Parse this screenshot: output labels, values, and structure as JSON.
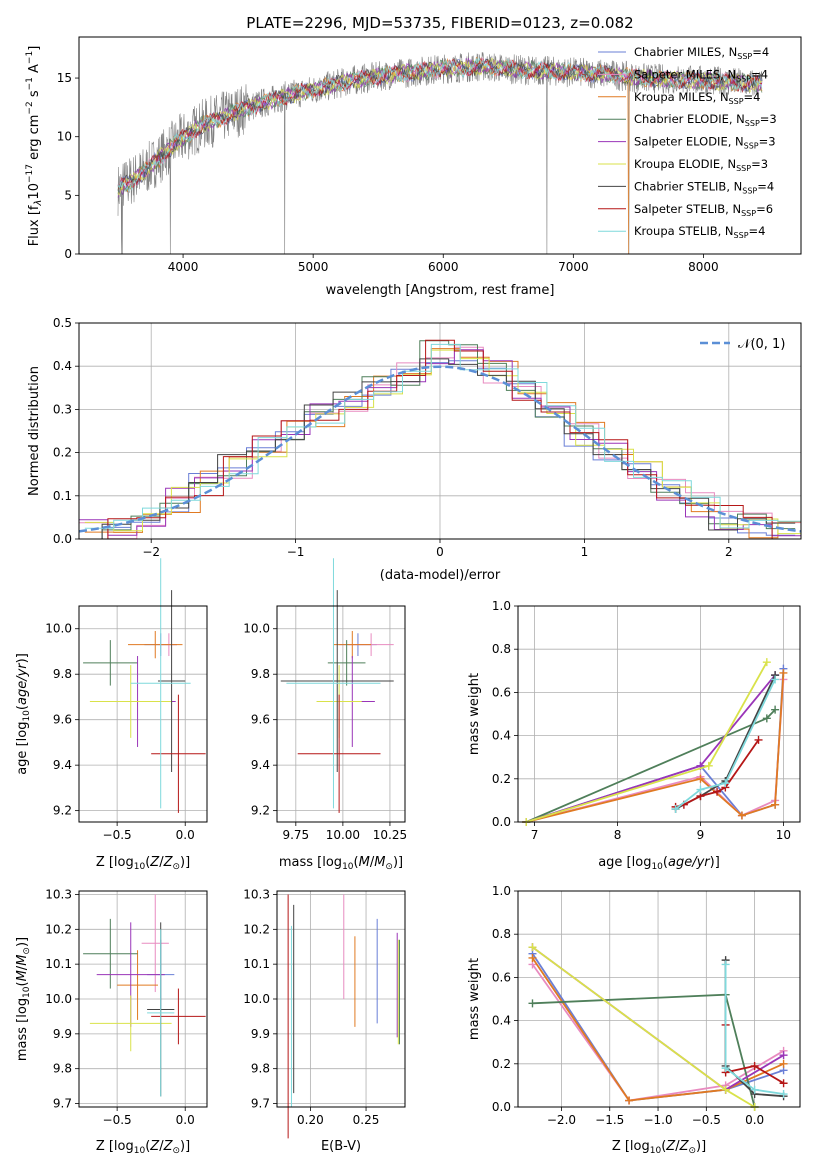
{
  "title": "PLATE=2296, MJD=53735, FIBERID=0123, z=0.082",
  "colors": {
    "Chabrier MILES": "#6a7fd6",
    "Salpeter MILES": "#e88bc0",
    "Kroupa MILES": "#e07a22",
    "Chabrier ELODIE": "#4f7f5a",
    "Salpeter ELODIE": "#9a35b8",
    "Kroupa ELODIE": "#d9e24a",
    "Chabrier STELIB": "#444444",
    "Salpeter STELIB": "#b51717",
    "Kroupa STELIB": "#7fd9dc",
    "data": "#808080",
    "normal": "#5b8fd6"
  },
  "panels": {
    "spectrum": {
      "xlabel": "wavelength [Angstrom, rest frame]",
      "ylabel": "Flux [f_λ10^-17 erg cm^-2 s^-1 A^-1]",
      "xticks": [
        "4000",
        "5000",
        "6000",
        "7000",
        "8000"
      ],
      "yticks": [
        "0",
        "5",
        "10",
        "15"
      ]
    },
    "residuals": {
      "xlabel": "(data-model)/error",
      "ylabel": "Normed distribution",
      "xticks": [
        "−2",
        "−1",
        "0",
        "1",
        "2"
      ],
      "yticks": [
        "0.0",
        "0.1",
        "0.2",
        "0.3",
        "0.4",
        "0.5"
      ],
      "legend_label": "𝒩(0, 1)"
    },
    "age_vs_Z": {
      "xlabel": "Z [log10(Z/Z⊙)]",
      "ylabel": "age [log10(age/yr)]",
      "xticks": [
        "−0.5",
        "0.0"
      ],
      "yticks": [
        "9.2",
        "9.4",
        "9.6",
        "9.8",
        "10.0"
      ]
    },
    "age_vs_mass": {
      "xlabel": "mass [log10(M/M⊙)]",
      "xticks": [
        "9.75",
        "10.00",
        "10.25"
      ],
      "yticks": [
        "9.2",
        "9.4",
        "9.6",
        "9.8",
        "10.0"
      ]
    },
    "mw_vs_age": {
      "xlabel": "age [log10(age/yr)]",
      "ylabel": "mass weight",
      "xticks": [
        "7",
        "8",
        "9",
        "10"
      ],
      "yticks": [
        "0.0",
        "0.2",
        "0.4",
        "0.6",
        "0.8",
        "1.0"
      ]
    },
    "mass_vs_Z": {
      "xlabel": "Z [log10(Z/Z⊙)]",
      "ylabel": "mass [log10(M/M⊙)]",
      "xticks": [
        "−0.5",
        "0.0"
      ],
      "yticks": [
        "9.7",
        "9.8",
        "9.9",
        "10.0",
        "10.1",
        "10.2",
        "10.3"
      ]
    },
    "mass_vs_ebv": {
      "xlabel": "E(B-V)",
      "xticks": [
        "0.20",
        "0.25"
      ],
      "yticks": [
        "9.7",
        "9.8",
        "9.9",
        "10.0",
        "10.1",
        "10.2",
        "10.3"
      ]
    },
    "mw_vs_Z": {
      "xlabel": "Z [log10(Z/Z⊙)]",
      "ylabel": "mass weight",
      "xticks": [
        "−2.0",
        "−1.5",
        "−1.0",
        "−0.5",
        "0.0"
      ],
      "yticks": [
        "0.0",
        "0.2",
        "0.4",
        "0.6",
        "0.8",
        "1.0"
      ]
    }
  },
  "chart_data": [
    {
      "type": "line",
      "title": "PLATE=2296, MJD=53735, FIBERID=0123, z=0.082",
      "xlabel": "wavelength [Angstrom, rest frame]",
      "ylabel": "Flux [f_λ10^-17 erg cm^-2 s^-1 A^-1]",
      "xlim": [
        3200,
        8750
      ],
      "ylim": [
        0,
        18.5
      ],
      "legend_position": "right",
      "series": [
        {
          "name": "Chabrier MILES, N_SSP=4"
        },
        {
          "name": "Salpeter MILES, N_SSP=4"
        },
        {
          "name": "Kroupa MILES, N_SSP=4"
        },
        {
          "name": "Chabrier ELODIE, N_SSP=3"
        },
        {
          "name": "Salpeter ELODIE, N_SSP=3"
        },
        {
          "name": "Kroupa ELODIE, N_SSP=3"
        },
        {
          "name": "Chabrier STELIB, N_SSP=4"
        },
        {
          "name": "Salpeter STELIB, N_SSP=6"
        },
        {
          "name": "Kroupa STELIB, N_SSP=4"
        }
      ],
      "continuum": {
        "x": [
          3500,
          3700,
          3950,
          4150,
          4500,
          4800,
          5000,
          5300,
          5600,
          6000,
          6300,
          6600,
          7000,
          7300,
          7500,
          8000,
          8400
        ],
        "y": [
          5.5,
          7.0,
          9.5,
          11.0,
          12.5,
          13.5,
          14.0,
          14.8,
          15.3,
          15.8,
          16.0,
          15.7,
          15.5,
          15.3,
          15.0,
          14.8,
          14.5
        ]
      }
    },
    {
      "type": "bar",
      "xlabel": "(data-model)/error",
      "ylabel": "Normed distribution",
      "xlim": [
        -2.5,
        2.5
      ],
      "ylim": [
        0,
        0.5
      ],
      "bin_edges": [
        -2.5,
        -2.3,
        -2.1,
        -1.9,
        -1.7,
        -1.5,
        -1.3,
        -1.1,
        -0.9,
        -0.7,
        -0.5,
        -0.3,
        -0.1,
        0.1,
        0.3,
        0.5,
        0.7,
        0.9,
        1.1,
        1.3,
        1.5,
        1.7,
        1.9,
        2.1,
        2.3,
        2.5
      ],
      "values": [
        0.02,
        0.03,
        0.05,
        0.09,
        0.13,
        0.17,
        0.21,
        0.25,
        0.29,
        0.32,
        0.35,
        0.38,
        0.43,
        0.42,
        0.39,
        0.34,
        0.29,
        0.24,
        0.2,
        0.16,
        0.12,
        0.08,
        0.05,
        0.03,
        0.02
      ],
      "reference": {
        "name": "𝒩(0, 1)",
        "mean": 0,
        "std": 1
      }
    },
    {
      "type": "scatter",
      "xlabel": "Z [log10(Z/Z⊙)]",
      "ylabel": "age [log10(age/yr)]",
      "xlim": [
        -0.78,
        0.16
      ],
      "ylim": [
        9.15,
        10.1
      ],
      "points": [
        {
          "x": -0.18,
          "y": 9.93
        },
        {
          "x": -0.12,
          "y": 9.93
        },
        {
          "x": -0.22,
          "y": 9.93
        },
        {
          "x": -0.55,
          "y": 9.85
        },
        {
          "x": -0.35,
          "y": 9.68
        },
        {
          "x": -0.4,
          "y": 9.68
        },
        {
          "x": -0.1,
          "y": 9.77
        },
        {
          "x": -0.05,
          "y": 9.45
        },
        {
          "x": -0.18,
          "y": 9.76
        }
      ]
    },
    {
      "type": "scatter",
      "xlabel": "mass [log10(M/M⊙)]",
      "ylabel": "age [log10(age/yr)]",
      "xlim": [
        9.65,
        10.33
      ],
      "ylim": [
        9.15,
        10.1
      ],
      "points": [
        {
          "x": 10.08,
          "y": 9.93
        },
        {
          "x": 10.15,
          "y": 9.93
        },
        {
          "x": 10.05,
          "y": 9.93
        },
        {
          "x": 10.02,
          "y": 9.85
        },
        {
          "x": 10.05,
          "y": 9.68
        },
        {
          "x": 9.98,
          "y": 9.68
        },
        {
          "x": 9.97,
          "y": 9.77
        },
        {
          "x": 9.98,
          "y": 9.45
        },
        {
          "x": 9.95,
          "y": 9.76
        }
      ]
    },
    {
      "type": "line",
      "xlabel": "age [log10(age/yr)]",
      "ylabel": "mass weight",
      "xlim": [
        6.8,
        10.2
      ],
      "ylim": [
        0,
        1.0
      ],
      "series": [
        {
          "x": [
            6.9,
            9.0,
            9.5,
            9.9,
            10.0
          ],
          "y": [
            0.0,
            0.26,
            0.03,
            0.08,
            0.71
          ]
        },
        {
          "x": [
            6.9,
            9.0,
            9.5,
            9.9,
            10.0
          ],
          "y": [
            0.0,
            0.21,
            0.03,
            0.1,
            0.66
          ]
        },
        {
          "x": [
            6.9,
            9.0,
            9.5,
            9.9,
            10.0
          ],
          "y": [
            0.0,
            0.2,
            0.03,
            0.08,
            0.69
          ]
        },
        {
          "x": [
            6.9,
            9.8,
            9.9
          ],
          "y": [
            0.0,
            0.48,
            0.52
          ]
        },
        {
          "x": [
            6.9,
            9.0,
            9.9
          ],
          "y": [
            0.0,
            0.26,
            0.68
          ]
        },
        {
          "x": [
            6.9,
            9.1,
            9.8
          ],
          "y": [
            0.0,
            0.26,
            0.74
          ]
        },
        {
          "x": [
            8.7,
            9.0,
            9.3,
            9.9
          ],
          "y": [
            0.06,
            0.12,
            0.19,
            0.68
          ]
        },
        {
          "x": [
            8.7,
            8.8,
            9.0,
            9.2,
            9.3,
            9.7
          ],
          "y": [
            0.07,
            0.08,
            0.12,
            0.14,
            0.16,
            0.38
          ]
        },
        {
          "x": [
            8.7,
            9.0,
            9.3,
            9.9
          ],
          "y": [
            0.06,
            0.15,
            0.18,
            0.66
          ]
        }
      ]
    },
    {
      "type": "scatter",
      "xlabel": "Z [log10(Z/Z⊙)]",
      "ylabel": "mass [log10(M/M⊙)]",
      "xlim": [
        -0.78,
        0.16
      ],
      "ylim": [
        9.69,
        10.31
      ],
      "points": [
        {
          "x": -0.18,
          "y": 10.07
        },
        {
          "x": -0.22,
          "y": 10.16
        },
        {
          "x": -0.35,
          "y": 10.04
        },
        {
          "x": -0.55,
          "y": 10.13
        },
        {
          "x": -0.4,
          "y": 10.07
        },
        {
          "x": -0.4,
          "y": 9.93
        },
        {
          "x": -0.18,
          "y": 9.97
        },
        {
          "x": -0.05,
          "y": 9.95
        },
        {
          "x": -0.18,
          "y": 9.96
        }
      ]
    },
    {
      "type": "scatter",
      "xlabel": "E(B-V)",
      "ylabel": "mass [log10(M/M⊙)]",
      "xlim": [
        0.17,
        0.285
      ],
      "ylim": [
        9.69,
        10.31
      ],
      "points": [
        {
          "x": 0.26,
          "y": 10.08
        },
        {
          "x": 0.23,
          "y": 10.15
        },
        {
          "x": 0.24,
          "y": 10.05
        },
        {
          "x": 0.28,
          "y": 10.02
        },
        {
          "x": 0.278,
          "y": 10.04
        },
        {
          "x": 0.279,
          "y": 10.02
        },
        {
          "x": 0.185,
          "y": 10.0
        },
        {
          "x": 0.18,
          "y": 9.95
        },
        {
          "x": 0.183,
          "y": 9.95
        }
      ]
    },
    {
      "type": "line",
      "xlabel": "Z [log10(Z/Z⊙)]",
      "ylabel": "mass weight",
      "xlim": [
        -2.45,
        0.47
      ],
      "ylim": [
        0,
        1.0
      ],
      "series": [
        {
          "x": [
            -2.3,
            -1.3,
            -0.3,
            0.3
          ],
          "y": [
            0.71,
            0.03,
            0.08,
            0.17
          ]
        },
        {
          "x": [
            -2.3,
            -1.3,
            -0.3,
            0.3
          ],
          "y": [
            0.66,
            0.03,
            0.1,
            0.26
          ]
        },
        {
          "x": [
            -2.3,
            -1.3,
            -0.3,
            0.3
          ],
          "y": [
            0.69,
            0.03,
            0.08,
            0.2
          ]
        },
        {
          "x": [
            -2.3,
            -0.3,
            0.0
          ],
          "y": [
            0.48,
            0.52,
            0.0
          ]
        },
        {
          "x": [
            -2.3,
            -0.3,
            0.3
          ],
          "y": [
            0.74,
            0.08,
            0.24
          ]
        },
        {
          "x": [
            -2.3,
            -0.3,
            0.0
          ],
          "y": [
            0.74,
            0.08,
            0.0
          ]
        },
        {
          "x": [
            -0.3,
            -0.3,
            0.0,
            0.3
          ],
          "y": [
            0.68,
            0.19,
            0.06,
            0.05
          ]
        },
        {
          "x": [
            -0.3,
            -0.3,
            0.0,
            0.3
          ],
          "y": [
            0.38,
            0.16,
            0.19,
            0.11
          ]
        },
        {
          "x": [
            -0.3,
            -0.3,
            0.0,
            0.3
          ],
          "y": [
            0.66,
            0.18,
            0.08,
            0.06
          ]
        }
      ]
    }
  ]
}
